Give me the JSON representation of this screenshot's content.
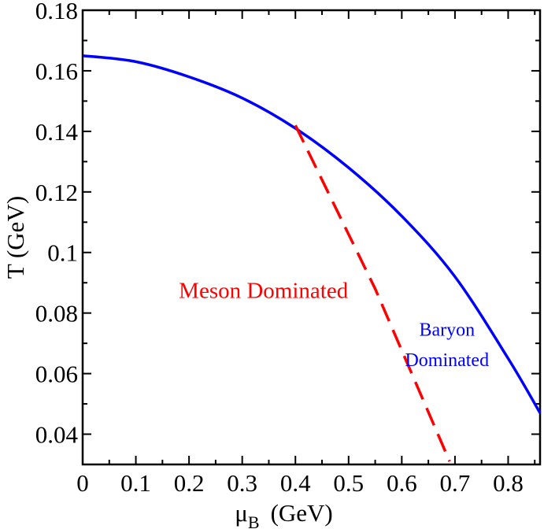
{
  "chart_data": {
    "type": "line",
    "title": "",
    "xlabel": {
      "symbol": "μ",
      "subscript": "B",
      "unit": "(GeV)"
    },
    "ylabel": "T  (GeV)",
    "xlim": [
      0,
      0.86
    ],
    "ylim": [
      0.03,
      0.18
    ],
    "x_ticks": [
      0,
      0.1,
      0.2,
      0.3,
      0.4,
      0.5,
      0.6,
      0.7,
      0.8
    ],
    "x_tick_labels": [
      "0",
      "0.1",
      "0.2",
      "0.3",
      "0.4",
      "0.5",
      "0.6",
      "0.7",
      "0.8"
    ],
    "y_ticks": [
      0.04,
      0.06,
      0.08,
      0.1,
      0.12,
      0.14,
      0.16,
      0.18
    ],
    "y_tick_labels": [
      "0.04",
      "0.06",
      "0.08",
      "0.1",
      "0.12",
      "0.14",
      "0.16",
      "0.18"
    ],
    "grid": false,
    "series": [
      {
        "style": "solid",
        "color": "#0000ff",
        "x": [
          0,
          0.1,
          0.2,
          0.3,
          0.4,
          0.5,
          0.6,
          0.7,
          0.8,
          0.86
        ],
        "y": [
          0.165,
          0.163,
          0.158,
          0.151,
          0.141,
          0.128,
          0.112,
          0.092,
          0.065,
          0.047
        ]
      },
      {
        "style": "dashed",
        "color": "#ff0000",
        "x": [
          0.4,
          0.55,
          0.69
        ],
        "y": [
          0.142,
          0.088,
          0.031
        ]
      }
    ],
    "annotations": [
      {
        "text": "Meson Dominated",
        "color": "#ff0000",
        "x": 0.34,
        "y": 0.085
      },
      {
        "text": "Baryon",
        "color": "#0000ff",
        "x": 0.685,
        "y": 0.0725
      },
      {
        "text": "Dominated",
        "color": "#0000ff",
        "x": 0.685,
        "y": 0.0625
      }
    ]
  }
}
